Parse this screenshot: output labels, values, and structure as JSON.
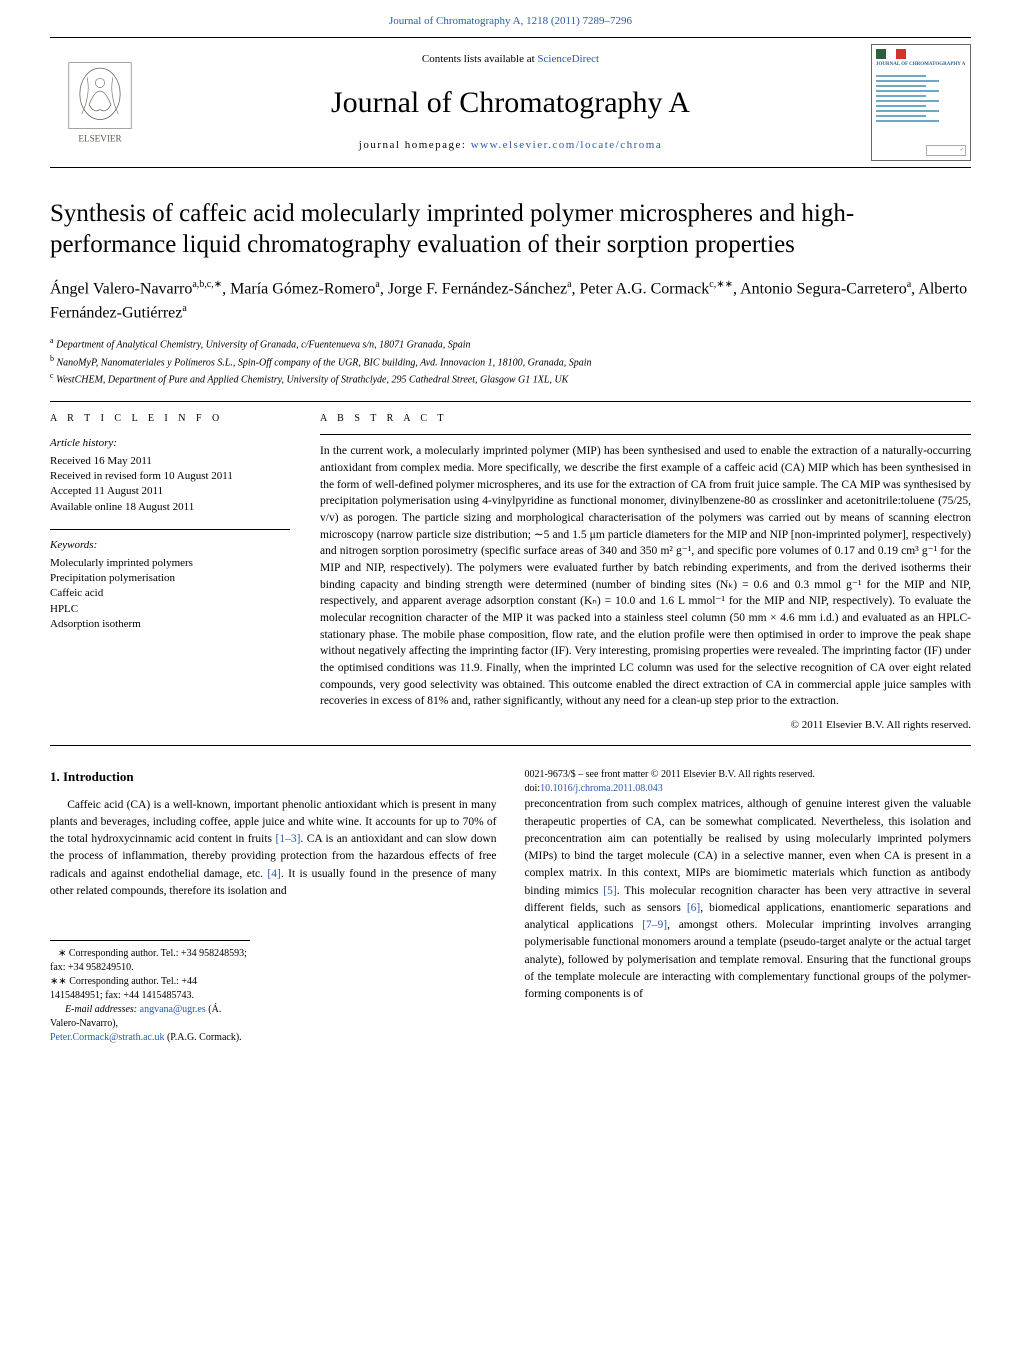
{
  "top_link": "Journal of Chromatography A, 1218 (2011) 7289–7296",
  "header": {
    "contents_avail": "Contents lists available at",
    "sciencedirect": "ScienceDirect",
    "journal_name": "Journal of Chromatography A",
    "homepage_label": "journal homepage:",
    "homepage_url": "www.elsevier.com/locate/chroma",
    "publisher": "ELSEVIER",
    "cover_title": "JOURNAL OF CHROMATOGRAPHY A"
  },
  "article": {
    "title": "Synthesis of caffeic acid molecularly imprinted polymer microspheres and high-performance liquid chromatography evaluation of their sorption properties",
    "authors_html": "Ángel Valero-Navarro<sup>a,b,c,∗</sup>, María Gómez-Romero<sup>a</sup>, Jorge F. Fernández-Sánchez<sup>a</sup>, Peter A.G. Cormack<sup>c,∗∗</sup>, Antonio Segura-Carretero<sup>a</sup>, Alberto Fernández-Gutiérrez<sup>a</sup>",
    "affiliations": [
      {
        "tag": "a",
        "text": "Department of Analytical Chemistry, University of Granada, c/Fuentenueva s/n, 18071 Granada, Spain"
      },
      {
        "tag": "b",
        "text": "NanoMyP, Nanomateriales y Polímeros S.L., Spin-Off company of the UGR, BIC building, Avd. Innovacion 1, 18100, Granada, Spain"
      },
      {
        "tag": "c",
        "text": "WestCHEM, Department of Pure and Applied Chemistry, University of Strathclyde, 295 Cathedral Street, Glasgow G1 1XL, UK"
      }
    ]
  },
  "info": {
    "heading": "a r t i c l e   i n f o",
    "history_head": "Article history:",
    "history": [
      "Received 16 May 2011",
      "Received in revised form 10 August 2011",
      "Accepted 11 August 2011",
      "Available online 18 August 2011"
    ],
    "keywords_head": "Keywords:",
    "keywords": [
      "Molecularly imprinted polymers",
      "Precipitation polymerisation",
      "Caffeic acid",
      "HPLC",
      "Adsorption isotherm"
    ]
  },
  "abstract": {
    "heading": "a b s t r a c t",
    "text": "In the current work, a molecularly imprinted polymer (MIP) has been synthesised and used to enable the extraction of a naturally-occurring antioxidant from complex media. More specifically, we describe the first example of a caffeic acid (CA) MIP which has been synthesised in the form of well-defined polymer microspheres, and its use for the extraction of CA from fruit juice sample. The CA MIP was synthesised by precipitation polymerisation using 4-vinylpyridine as functional monomer, divinylbenzene-80 as crosslinker and acetonitrile:toluene (75/25, v/v) as porogen. The particle sizing and morphological characterisation of the polymers was carried out by means of scanning electron microscopy (narrow particle size distribution; ∼5 and 1.5 μm particle diameters for the MIP and NIP [non-imprinted polymer], respectively) and nitrogen sorption porosimetry (specific surface areas of 340 and 350 m² g⁻¹, and specific pore volumes of 0.17 and 0.19 cm³ g⁻¹ for the MIP and NIP, respectively). The polymers were evaluated further by batch rebinding experiments, and from the derived isotherms their binding capacity and binding strength were determined (number of binding sites (Nₖ) = 0.6 and 0.3 mmol g⁻¹ for the MIP and NIP, respectively, and apparent average adsorption constant (Kₙ) = 10.0 and 1.6 L mmol⁻¹ for the MIP and NIP, respectively). To evaluate the molecular recognition character of the MIP it was packed into a stainless steel column (50 mm × 4.6 mm i.d.) and evaluated as an HPLC-stationary phase. The mobile phase composition, flow rate, and the elution profile were then optimised in order to improve the peak shape without negatively affecting the imprinting factor (IF). Very interesting, promising properties were revealed. The imprinting factor (IF) under the optimised conditions was 11.9. Finally, when the imprinted LC column was used for the selective recognition of CA over eight related compounds, very good selectivity was obtained. This outcome enabled the direct extraction of CA in commercial apple juice samples with recoveries in excess of 81% and, rather significantly, without any need for a clean-up step prior to the extraction.",
    "copyright": "© 2011 Elsevier B.V. All rights reserved."
  },
  "body": {
    "intro_head": "1.  Introduction",
    "para1_pre": "Caffeic acid (CA) is a well-known, important phenolic antioxidant which is present in many plants and beverages, including coffee, apple juice and white wine. It accounts for up to 70% of the total hydroxycinnamic acid content in fruits ",
    "ref1": "[1–3]",
    "para1_mid": ". CA is an antioxidant and can slow down the process of inflammation, thereby providing protection from the hazardous effects of free radicals and against endothelial damage, etc. ",
    "ref4": "[4]",
    "para1_post": ". It is usually found in the presence of many other related compounds, therefore its isolation and",
    "para2_pre": "preconcentration from such complex matrices, although of genuine interest given the valuable therapeutic properties of CA, can be somewhat complicated. Nevertheless, this isolation and preconcentration aim can potentially be realised by using molecularly imprinted polymers (MIPs) to bind the target molecule (CA) in a selective manner, even when CA is present in a complex matrix. In this context, MIPs are biomimetic materials which function as antibody binding mimics ",
    "ref5": "[5]",
    "para2_mid1": ". This molecular recognition character has been very attractive in several different fields, such as sensors ",
    "ref6": "[6]",
    "para2_mid2": ", biomedical applications, enantiomeric separations and analytical applications ",
    "ref79": "[7–9]",
    "para2_post": ", amongst others. Molecular imprinting involves arranging polymerisable functional monomers around a template (pseudo-target analyte or the actual target analyte), followed by polymerisation and template removal. Ensuring that the functional groups of the template molecule are interacting with complementary functional groups of the polymer-forming components is of"
  },
  "footnotes": {
    "corr1": "∗ Corresponding author. Tel.: +34 958248593; fax: +34 958249510.",
    "corr2": "∗∗ Corresponding author. Tel.: +44 1415484951; fax: +44 1415485743.",
    "email_lead": "E-mail addresses: ",
    "email1": "angvana@ugr.es",
    "email1_tail": " (Á. Valero-Navarro),",
    "email2": "Peter.Cormack@strath.ac.uk",
    "email2_tail": " (P.A.G. Cormack).",
    "front_matter": "0021-9673/$ – see front matter © 2011 Elsevier B.V. All rights reserved.",
    "doi_label": "doi:",
    "doi": "10.1016/j.chroma.2011.08.043"
  },
  "colors": {
    "link": "#2d5aa8",
    "text": "#000000",
    "logo_orange": "#e67817",
    "logo_gray": "#5a5a52"
  }
}
